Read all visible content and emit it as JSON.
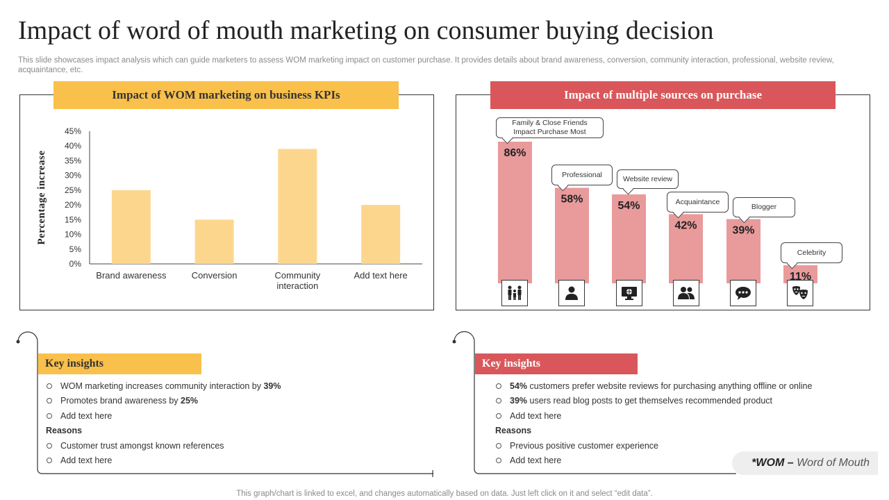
{
  "title": "Impact of word of mouth marketing on consumer buying decision",
  "subtitle": "This slide showcases impact analysis which can guide marketers to assess WOM marketing impact on customer purchase. It provides details about brand awareness, conversion, community interaction, professional, website review, acquaintance, etc.",
  "left_panel": {
    "banner": "Impact of WOM marketing on business KPIs"
  },
  "right_panel": {
    "banner": "Impact of multiple sources on purchase",
    "callouts": [
      "Family & Close Friends\nImpact Purchase Most",
      "Professional",
      "Website review",
      "Acquaintance",
      "Blogger",
      "Celebrity"
    ],
    "value_labels": [
      "86%",
      "58%",
      "54%",
      "42%",
      "39%",
      "11%"
    ],
    "icons": [
      "family-icon",
      "person-icon",
      "website-icon",
      "people-icon",
      "chat-icon",
      "theater-masks-icon"
    ]
  },
  "chart_data": [
    {
      "type": "bar",
      "title": "Impact of WOM marketing on business KPIs",
      "ylabel": "Percentage increase",
      "xlabel": "",
      "categories": [
        "Brand awareness",
        "Conversion",
        "Community\ninteraction",
        "Add text here"
      ],
      "values": [
        25,
        15,
        39,
        20
      ],
      "ylim": [
        0,
        45
      ],
      "yticks": [
        "0%",
        "5%",
        "10%",
        "15%",
        "20%",
        "25%",
        "30%",
        "35%",
        "40%",
        "45%"
      ],
      "color": "#FDD68E",
      "grid": false
    },
    {
      "type": "bar",
      "title": "Impact of multiple sources on purchase",
      "categories": [
        "Family & Close Friends",
        "Professional",
        "Website review",
        "Acquaintance",
        "Blogger",
        "Celebrity"
      ],
      "values": [
        86,
        58,
        54,
        42,
        39,
        11
      ],
      "ylim": [
        0,
        100
      ],
      "color": "#E99A9B"
    }
  ],
  "key_insights_left": {
    "label": "Key insights",
    "items": [
      {
        "text": "WOM marketing increases community interaction by ",
        "bold": "39%"
      },
      {
        "text": "Promotes brand awareness by ",
        "bold": "25%"
      },
      {
        "text": "Add text here",
        "bold": ""
      }
    ],
    "reasons_label": "Reasons",
    "reasons": [
      "Customer trust amongst known references",
      "Add text here"
    ]
  },
  "key_insights_right": {
    "label": "Key insights",
    "items": [
      {
        "bold": "54%",
        "text": " customers prefer website reviews for purchasing anything offline or online"
      },
      {
        "bold": "39%",
        "text": " users read blog posts to get themselves recommended product"
      },
      {
        "bold": "",
        "text": "Add text here"
      }
    ],
    "reasons_label": "Reasons",
    "reasons": [
      "Previous positive customer experience",
      "Add text here"
    ]
  },
  "wom_note": {
    "abbr": "*WOM –",
    "full": " Word of Mouth"
  },
  "footer": "This graph/chart is linked to excel,  and changes automatically based on data. Just left click on it and select “edit data”.",
  "colors": {
    "yellow": "#F9C04B",
    "red": "#D9575A",
    "bar_yellow": "#FDD68E",
    "bar_red": "#E99A9B"
  }
}
